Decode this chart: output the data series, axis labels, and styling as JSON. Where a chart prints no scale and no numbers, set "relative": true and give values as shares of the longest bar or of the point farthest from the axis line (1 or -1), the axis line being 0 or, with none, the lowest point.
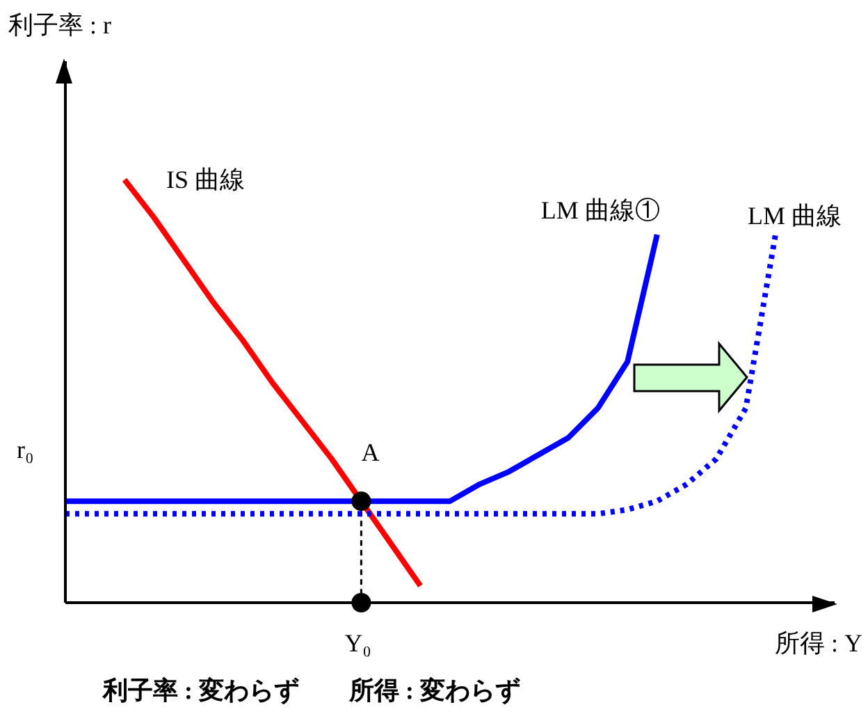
{
  "chart_data": {
    "type": "line",
    "relative": true,
    "xlabel": "所得 : Y",
    "categories": [
      null,
      null,
      null,
      null,
      null,
      null,
      null,
      null,
      null,
      null,
      null,
      null,
      null,
      null,
      null,
      null,
      null,
      null,
      null,
      null,
      null,
      null,
      null,
      null,
      null,
      null,
      null
    ],
    "series": [
      {
        "name": "IS 曲線",
        "color": "#ff0000",
        "line_style": "solid",
        "values": [
          null,
          null,
          1,
          0.91,
          0.81,
          0.71,
          0.62,
          0.52,
          0.43,
          0.34,
          0.24,
          0.14,
          0.04,
          null,
          null,
          null,
          null,
          null,
          null,
          null,
          null,
          null,
          null,
          null,
          null,
          null,
          null
        ]
      },
      {
        "name": "LM 曲線①",
        "color": "#0000ff",
        "line_style": "solid",
        "values": [
          0.24,
          0.24,
          0.24,
          0.24,
          0.24,
          0.24,
          0.24,
          0.24,
          0.24,
          0.24,
          0.24,
          0.24,
          0.24,
          0.24,
          0.28,
          0.31,
          0.35,
          0.39,
          0.46,
          0.57,
          0.87,
          null,
          null,
          null,
          null,
          null,
          null
        ]
      },
      {
        "name": "LM 曲線",
        "color": "#0000ff",
        "line_style": "dotted",
        "values": [
          0.21,
          0.21,
          0.21,
          0.21,
          0.21,
          0.21,
          0.21,
          0.21,
          0.21,
          0.21,
          0.21,
          0.21,
          0.21,
          0.21,
          0.21,
          0.21,
          0.21,
          0.21,
          0.21,
          0.22,
          0.24,
          0.28,
          0.34,
          0.46,
          0.87,
          null,
          null
        ]
      },
      {
        "type": "line",
        "color": "#000000",
        "marker": "circle",
        "values": [
          null,
          null,
          null,
          null,
          null,
          null,
          null,
          null,
          null,
          null,
          0.24,
          null,
          null,
          null,
          null,
          null,
          null,
          null,
          null,
          null,
          null,
          null,
          null,
          null,
          null,
          null,
          null
        ]
      },
      {
        "type": "line",
        "color": "#000000",
        "marker": "circle",
        "values": [
          null,
          null,
          null,
          null,
          null,
          null,
          null,
          null,
          null,
          null,
          0,
          null,
          null,
          null,
          null,
          null,
          null,
          null,
          null,
          null,
          null,
          null,
          null,
          null,
          null,
          null,
          null
        ]
      }
    ],
    "annotations": [
      "A",
      "r₀",
      "Y₀",
      "利子率 : 変わらず　　所得 : 変わらず",
      "利子率 : r"
    ]
  }
}
